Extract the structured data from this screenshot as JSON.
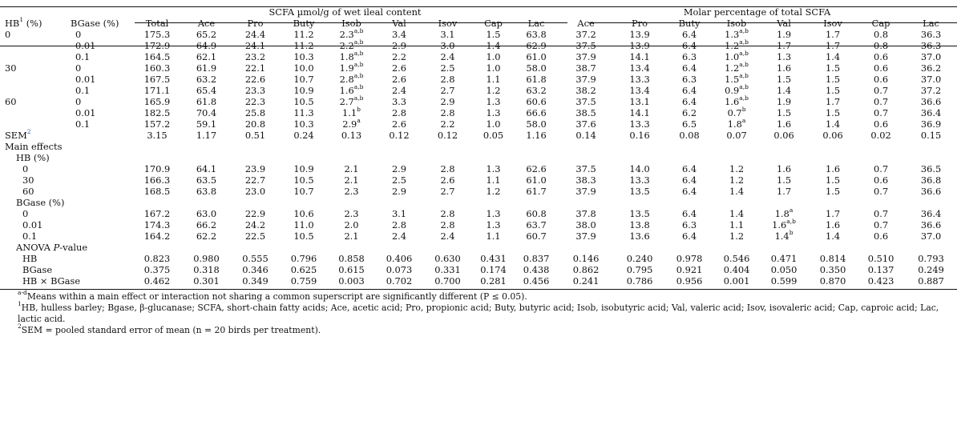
{
  "header": {
    "group_scfa": "SCFA µmol/g of wet ileal content",
    "group_molar": "Molar percentage of total SCFA",
    "hb": "HB",
    "hb_sup": "1",
    "hb_unit": " (%)",
    "bgase": "BGase (%)",
    "cols_scfa": [
      "Total",
      "Ace",
      "Pro",
      "Buty",
      "Isob",
      "Val",
      "Isov",
      "Cap",
      "Lac"
    ],
    "cols_molar": [
      "Ace",
      "Pro",
      "Buty",
      "Isob",
      "Val",
      "Isov",
      "Cap",
      "Lac"
    ]
  },
  "rows": [
    {
      "hb": "0",
      "bg": "0",
      "v": [
        "175.3",
        "65.2",
        "24.4",
        "11.2",
        "2.3",
        "3.4",
        "3.1",
        "1.5",
        "63.8",
        "37.2",
        "13.9",
        "6.4",
        "1.3",
        "1.9",
        "1.7",
        "0.8",
        "36.3"
      ],
      "isob_sup": "a,b",
      "isob2_sup": "a,b"
    },
    {
      "hb": "",
      "bg": "0.01",
      "v": [
        "172.9",
        "64.9",
        "24.1",
        "11.2",
        "2.2",
        "2.9",
        "3.0",
        "1.4",
        "62.9",
        "37.5",
        "13.9",
        "6.4",
        "1.2",
        "1.7",
        "1.7",
        "0.8",
        "36.3"
      ],
      "isob_sup": "a,b",
      "isob2_sup": "a,b"
    },
    {
      "hb": "",
      "bg": "0.1",
      "v": [
        "164.5",
        "62.1",
        "23.2",
        "10.3",
        "1.8",
        "2.2",
        "2.4",
        "1.0",
        "61.0",
        "37.9",
        "14.1",
        "6.3",
        "1.0",
        "1.3",
        "1.4",
        "0.6",
        "37.0"
      ],
      "isob_sup": "a,b",
      "isob2_sup": "a,b"
    },
    {
      "hb": "30",
      "bg": "0",
      "v": [
        "160.3",
        "61.9",
        "22.1",
        "10.0",
        "1.9",
        "2.6",
        "2.5",
        "1.0",
        "58.0",
        "38.7",
        "13.4",
        "6.4",
        "1.2",
        "1.6",
        "1.5",
        "0.6",
        "36.2"
      ],
      "isob_sup": "a,b",
      "isob2_sup": "a,b"
    },
    {
      "hb": "",
      "bg": "0.01",
      "v": [
        "167.5",
        "63.2",
        "22.6",
        "10.7",
        "2.8",
        "2.6",
        "2.8",
        "1.1",
        "61.8",
        "37.9",
        "13.3",
        "6.3",
        "1.5",
        "1.5",
        "1.5",
        "0.6",
        "37.0"
      ],
      "isob_sup": "a,b",
      "isob2_sup": "a,b"
    },
    {
      "hb": "",
      "bg": "0.1",
      "v": [
        "171.1",
        "65.4",
        "23.3",
        "10.9",
        "1.6",
        "2.4",
        "2.7",
        "1.2",
        "63.2",
        "38.2",
        "13.4",
        "6.4",
        "0.9",
        "1.4",
        "1.5",
        "0.7",
        "37.2"
      ],
      "isob_sup": "a,b",
      "isob2_sup": "a,b"
    },
    {
      "hb": "60",
      "bg": "0",
      "v": [
        "165.9",
        "61.8",
        "22.3",
        "10.5",
        "2.7",
        "3.3",
        "2.9",
        "1.3",
        "60.6",
        "37.5",
        "13.1",
        "6.4",
        "1.6",
        "1.9",
        "1.7",
        "0.7",
        "36.6"
      ],
      "isob_sup": "a,b",
      "isob2_sup": "a,b"
    },
    {
      "hb": "",
      "bg": "0.01",
      "v": [
        "182.5",
        "70.4",
        "25.8",
        "11.3",
        "1.1",
        "2.8",
        "2.8",
        "1.3",
        "66.6",
        "38.5",
        "14.1",
        "6.2",
        "0.7",
        "1.5",
        "1.5",
        "0.7",
        "36.4"
      ],
      "isob_sup": "b",
      "isob2_sup": "b"
    },
    {
      "hb": "",
      "bg": "0.1",
      "v": [
        "157.2",
        "59.1",
        "20.8",
        "10.3",
        "2.9",
        "2.6",
        "2.2",
        "1.0",
        "58.0",
        "37.6",
        "13.3",
        "6.5",
        "1.8",
        "1.6",
        "1.4",
        "0.6",
        "36.9"
      ],
      "isob_sup": "a",
      "isob2_sup": "a"
    }
  ],
  "sem": {
    "label": "SEM",
    "sup": "2",
    "v": [
      "3.15",
      "1.17",
      "0.51",
      "0.24",
      "0.13",
      "0.12",
      "0.12",
      "0.05",
      "1.16",
      "0.14",
      "0.16",
      "0.08",
      "0.07",
      "0.06",
      "0.06",
      "0.02",
      "0.15"
    ]
  },
  "main_effects": {
    "label": "Main effects",
    "hb_label": "HB (%)",
    "hb_rows": [
      {
        "level": "0",
        "v": [
          "170.9",
          "64.1",
          "23.9",
          "10.9",
          "2.1",
          "2.9",
          "2.8",
          "1.3",
          "62.6",
          "37.5",
          "14.0",
          "6.4",
          "1.2",
          "1.6",
          "1.6",
          "0.7",
          "36.5"
        ]
      },
      {
        "level": "30",
        "v": [
          "166.3",
          "63.5",
          "22.7",
          "10.5",
          "2.1",
          "2.5",
          "2.6",
          "1.1",
          "61.0",
          "38.3",
          "13.3",
          "6.4",
          "1.2",
          "1.5",
          "1.5",
          "0.6",
          "36.8"
        ]
      },
      {
        "level": "60",
        "v": [
          "168.5",
          "63.8",
          "23.0",
          "10.7",
          "2.3",
          "2.9",
          "2.7",
          "1.2",
          "61.7",
          "37.9",
          "13.5",
          "6.4",
          "1.4",
          "1.7",
          "1.5",
          "0.7",
          "36.6"
        ]
      }
    ],
    "bg_label": "BGase (%)",
    "bg_rows": [
      {
        "level": "0",
        "v": [
          "167.2",
          "63.0",
          "22.9",
          "10.6",
          "2.3",
          "3.1",
          "2.8",
          "1.3",
          "60.8",
          "37.8",
          "13.5",
          "6.4",
          "1.4",
          "1.8",
          "1.7",
          "0.7",
          "36.4"
        ],
        "val_sup": "a"
      },
      {
        "level": "0.01",
        "v": [
          "174.3",
          "66.2",
          "24.2",
          "11.0",
          "2.0",
          "2.8",
          "2.8",
          "1.3",
          "63.7",
          "38.0",
          "13.8",
          "6.3",
          "1.1",
          "1.6",
          "1.6",
          "0.7",
          "36.6"
        ],
        "val_sup": "a,b"
      },
      {
        "level": "0.1",
        "v": [
          "164.2",
          "62.2",
          "22.5",
          "10.5",
          "2.1",
          "2.4",
          "2.4",
          "1.1",
          "60.7",
          "37.9",
          "13.6",
          "6.4",
          "1.2",
          "1.4",
          "1.4",
          "0.6",
          "37.0"
        ],
        "val_sup": "b"
      }
    ]
  },
  "anova": {
    "label_a": "ANOVA ",
    "label_p": "P",
    "label_b": "-value",
    "rows": [
      {
        "name": "HB",
        "v": [
          "0.823",
          "0.980",
          "0.555",
          "0.796",
          "0.858",
          "0.406",
          "0.630",
          "0.431",
          "0.837",
          "0.146",
          "0.240",
          "0.978",
          "0.546",
          "0.471",
          "0.814",
          "0.510",
          "0.793"
        ]
      },
      {
        "name": "BGase",
        "v": [
          "0.375",
          "0.318",
          "0.346",
          "0.625",
          "0.615",
          "0.073",
          "0.331",
          "0.174",
          "0.438",
          "0.862",
          "0.795",
          "0.921",
          "0.404",
          "0.050",
          "0.350",
          "0.137",
          "0.249"
        ]
      },
      {
        "name": "HB × BGase",
        "v": [
          "0.462",
          "0.301",
          "0.349",
          "0.759",
          "0.003",
          "0.702",
          "0.700",
          "0.281",
          "0.456",
          "0.241",
          "0.786",
          "0.956",
          "0.001",
          "0.599",
          "0.870",
          "0.423",
          "0.887"
        ]
      }
    ]
  },
  "footnotes": {
    "f1_sup": "a-d",
    "f1": "Means within a main effect or interaction not sharing a common superscript are significantly different (P ≤ 0.05).",
    "f2_sup": "1",
    "f2": "HB, hulless barley; Bgase, β-glucanase; SCFA, short-chain fatty acids; Ace, acetic acid; Pro, propionic acid; Buty, butyric acid; Isob, isobutyric acid; Val, valeric acid; Isov, isovaleric acid; Cap, caproic acid; Lac, lactic acid.",
    "f3_sup": "2",
    "f3": "SEM = pooled standard error of mean (n = 20 birds per treatment)."
  }
}
